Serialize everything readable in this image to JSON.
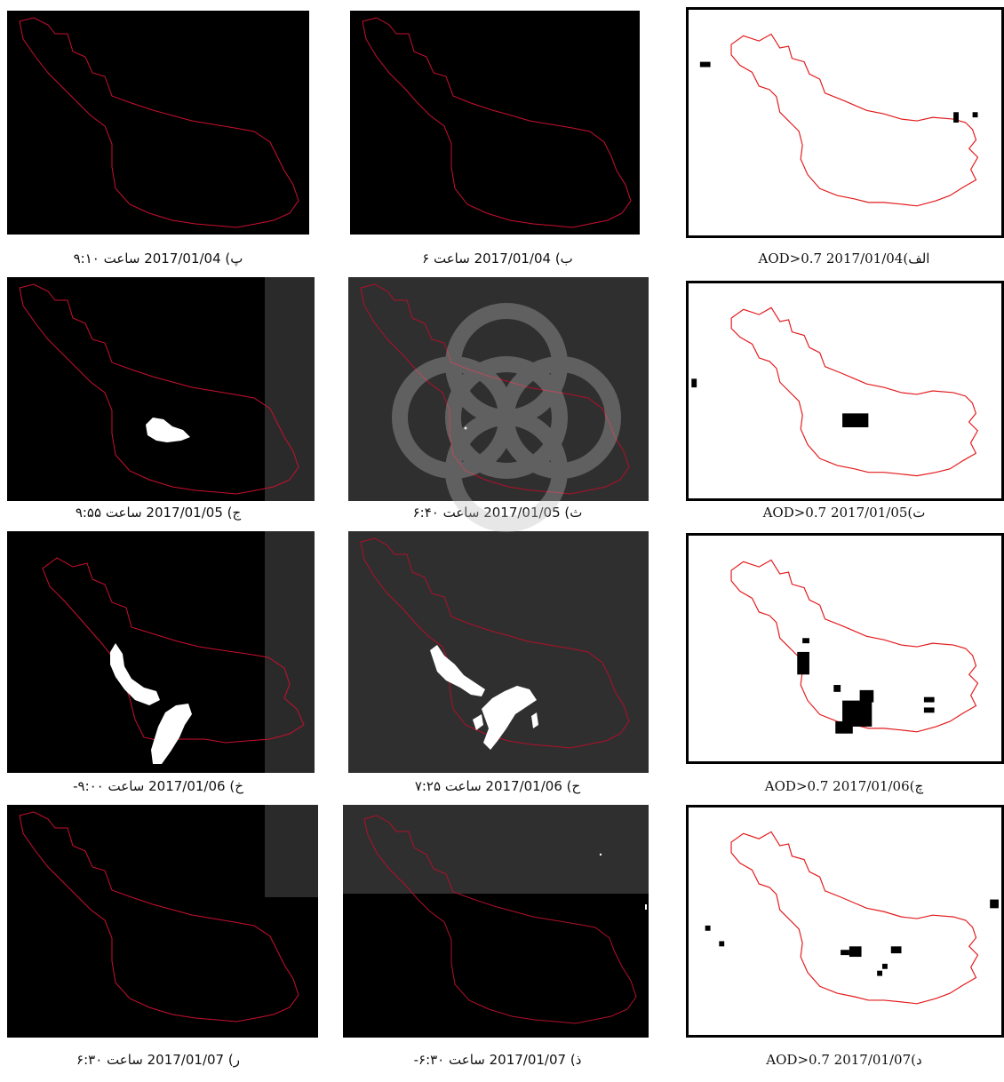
{
  "figure": {
    "rows": [
      {
        "panels": [
          {
            "caption": "الف)2017/01/04  AOD>0.7",
            "kind": "aod"
          },
          {
            "caption": "ب) 2017/01/04  ساعت ۶",
            "kind": "dark"
          },
          {
            "caption": "پ) 2017/01/04  ساعت ۹:۱۰",
            "kind": "dark"
          }
        ]
      },
      {
        "panels": [
          {
            "caption": "ت)2017/01/05   AOD>0.7",
            "kind": "aod"
          },
          {
            "caption": "ث) 2017/01/05 ساعت ۶:۴۰",
            "kind": "dark"
          },
          {
            "caption": "ج) 2017/01/05 ساعت ۹:۵۵",
            "kind": "dark"
          }
        ]
      },
      {
        "panels": [
          {
            "caption": "چ)2017/01/06   AOD>0.7",
            "kind": "aod"
          },
          {
            "caption": "ح) 2017/01/06 ساعت ۷:۲۵",
            "kind": "dark"
          },
          {
            "caption": "خ) 2017/01/06 ساعت ۹:۰۰-",
            "kind": "dark"
          }
        ]
      },
      {
        "panels": [
          {
            "caption": "د)2017/01/07   AOD>0.7",
            "kind": "aod"
          },
          {
            "caption": "ذ) 2017/01/07 ساعت ۶:۳۰-",
            "kind": "dark"
          },
          {
            "caption": "ر) 2017/01/07 ساعت ۶:۳۰",
            "kind": "dark"
          }
        ]
      }
    ],
    "colors": {
      "outline": "#e31a1c",
      "dark_bg": "#000000",
      "light_bg": "#ffffff",
      "dust": "#ffffff",
      "aod_pixels": "#000000"
    }
  }
}
